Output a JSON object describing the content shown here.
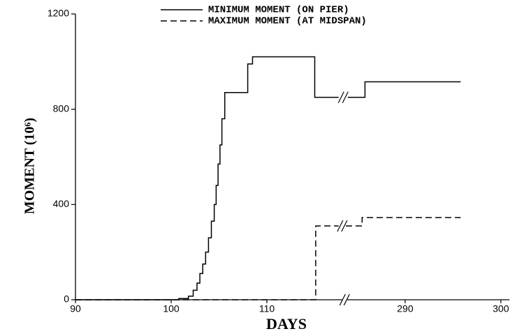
{
  "chart_data": {
    "type": "step",
    "x_label": "DAYS",
    "y_label": "MOMENT (10⁶)",
    "xlim": [
      90,
      300.9
    ],
    "xbreak": [
      118,
      283.8
    ],
    "xticks": [
      90,
      100,
      110,
      290,
      300
    ],
    "ylim": [
      0,
      1200
    ],
    "yticks": [
      0,
      400,
      800,
      1200
    ],
    "color": "#000000",
    "series": [
      {
        "name": "MINIMUM MOMENT (ON PIER)",
        "dash": "solid",
        "x": [
          90,
          100.8,
          101.8,
          102.3,
          102.7,
          103.0,
          103.3,
          103.6,
          103.9,
          104.2,
          104.5,
          104.7,
          104.9,
          105.1,
          105.3,
          105.6,
          108.0,
          108.5,
          115.0,
          117.5,
          284.0,
          285.8,
          295.8
        ],
        "values": [
          0,
          5,
          15,
          40,
          70,
          110,
          150,
          200,
          260,
          330,
          400,
          480,
          570,
          650,
          760,
          870,
          990,
          1020,
          850,
          null,
          850,
          915,
          915
        ]
      },
      {
        "name": "MAXIMUM MOMENT (AT MIDSPAN)",
        "dash": "dashed",
        "x": [
          90,
          115.1,
          117.5,
          283.8,
          285.5,
          295.8
        ],
        "values": [
          0,
          310,
          null,
          310,
          345,
          345
        ]
      }
    ]
  }
}
